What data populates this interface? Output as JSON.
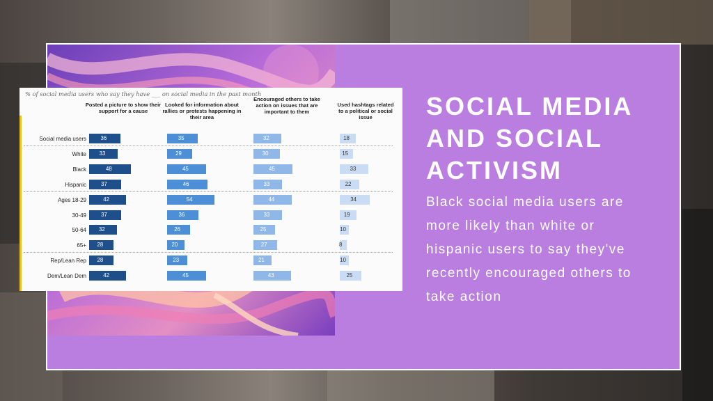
{
  "slide": {
    "title": "SOCIAL MEDIA AND SOCIAL ACTIVISM",
    "body": "Black social media users are more likely than white or hispanic users to say they've recently encouraged others to take action",
    "accent_color": "#b97ee0"
  },
  "chart_data": {
    "type": "bar",
    "title": "% of social media users who say they have ___ on social media in the past month",
    "categories": [
      "Social media users",
      "White",
      "Black",
      "Hispanic",
      "Ages 18-29",
      "30-49",
      "50-64",
      "65+",
      "Rep/Lean Rep",
      "Dem/Lean Dem"
    ],
    "series": [
      {
        "name": "Posted a picture to show their support for a cause",
        "color": "#1f4f8b",
        "values": [
          36,
          33,
          48,
          37,
          42,
          37,
          32,
          28,
          28,
          42
        ]
      },
      {
        "name": "Looked for information about rallies or protests happening in their area",
        "color": "#4d8fd6",
        "values": [
          35,
          29,
          45,
          46,
          54,
          36,
          26,
          20,
          23,
          45
        ]
      },
      {
        "name": "Encouraged others to take action on issues that are important to them",
        "color": "#8fb8e8",
        "values": [
          32,
          30,
          45,
          33,
          44,
          33,
          25,
          27,
          21,
          43
        ]
      },
      {
        "name": "Used hashtags related to a political or social issue",
        "color": "#c9dcf3",
        "values": [
          18,
          15,
          33,
          22,
          34,
          19,
          10,
          8,
          10,
          25
        ]
      }
    ],
    "group_breaks_after": [
      "Social media users",
      "Hispanic",
      "65+"
    ]
  }
}
